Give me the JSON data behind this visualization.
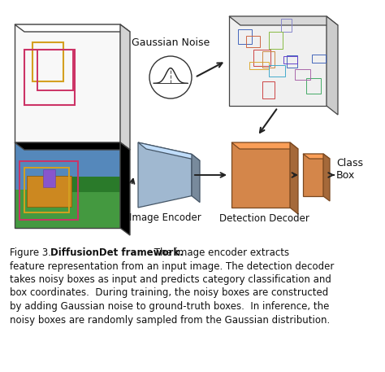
{
  "bg_color": "#ffffff",
  "blue_color": "#a0b8d0",
  "orange_color": "#d4864a",
  "orange_dark": "#b86830",
  "orange_top": "#e8a870",
  "panel_edge": "#444444",
  "gaussian_noise_label": "Gaussian Noise",
  "image_encoder_label": "Image Encoder",
  "detection_decoder_label": "Detection Decoder",
  "class_box_label": "Class\nBox",
  "noisy_box_colors": [
    "#4466aa",
    "#4466aa",
    "#cc4444",
    "#cc4444",
    "#ddaa44",
    "#ddaa44",
    "#8888cc",
    "#44aa66",
    "#4466aa",
    "#cc8844",
    "#aa44aa",
    "#44aacc"
  ],
  "fig3_prefix": "Figure 3.  ",
  "fig3_bold": "DiffusionDet framework.",
  "fig3_line1_rest": " The image encoder extracts",
  "fig3_line2": "feature representation from an input image. The detection decoder",
  "fig3_line3": "takes noisy boxes as input and predicts category classification and",
  "fig3_line4": "box coordinates.  During training, the noisy boxes are constructed",
  "fig3_line5": "by adding Gaussian noise to ground-truth boxes.  In inference, the",
  "fig3_line6": "noisy boxes are randomly sampled from the Gaussian distribution."
}
